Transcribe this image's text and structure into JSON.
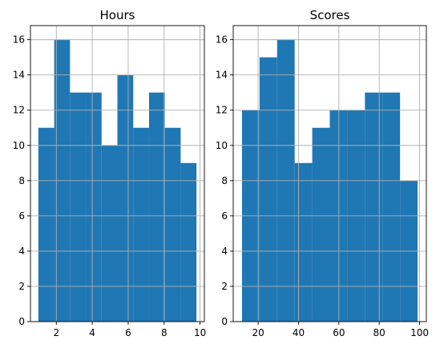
{
  "chart_data": [
    {
      "type": "bar",
      "title": "Hours",
      "xlabel": "",
      "ylabel": "",
      "bin_edges": [
        1.0,
        1.88,
        2.76,
        3.64,
        4.52,
        5.4,
        6.28,
        7.16,
        8.04,
        8.92,
        9.8
      ],
      "values": [
        11,
        16,
        13,
        13,
        10,
        14,
        11,
        13,
        11,
        9
      ],
      "xlim": [
        0.56,
        10.24
      ],
      "ylim": [
        0,
        16.8
      ],
      "xticks": [
        2,
        4,
        6,
        8,
        10
      ],
      "yticks": [
        0,
        2,
        4,
        6,
        8,
        10,
        12,
        14,
        16
      ],
      "grid": true,
      "color": "#1f77b4"
    },
    {
      "type": "bar",
      "title": "Scores",
      "xlabel": "",
      "ylabel": "",
      "bin_edges": [
        12,
        20.7,
        29.4,
        38.1,
        46.8,
        55.5,
        64.2,
        72.9,
        81.6,
        90.3,
        99
      ],
      "values": [
        12,
        15,
        16,
        9,
        11,
        12,
        12,
        13,
        13,
        8
      ],
      "xlim": [
        7.65,
        103.35
      ],
      "ylim": [
        0,
        16.8
      ],
      "xticks": [
        20,
        40,
        60,
        80,
        100
      ],
      "yticks": [
        0,
        2,
        4,
        6,
        8,
        10,
        12,
        14,
        16
      ],
      "grid": true,
      "color": "#1f77b4"
    }
  ]
}
